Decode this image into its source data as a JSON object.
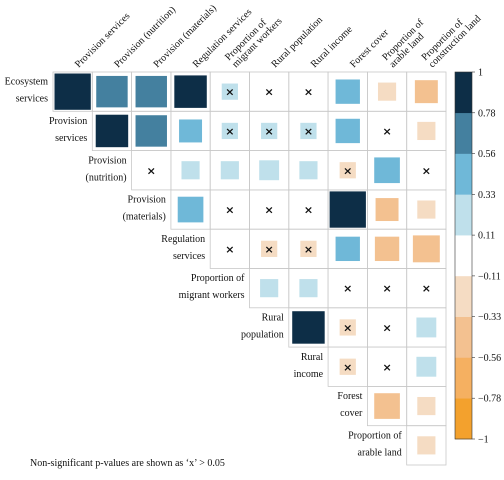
{
  "chart_data": {
    "type": "heatmap",
    "subtype": "correlation-matrix-upper-triangle",
    "columns": [
      "Provision services",
      "Provision (nutrition)",
      "Provision (materials)",
      "Regulation services",
      "Proportion of migrant workers",
      "Rural population",
      "Rural income",
      "Forest cover",
      "Proportion of arable land",
      "Proportion of construction land"
    ],
    "column_label_lines": [
      [
        "Provision services"
      ],
      [
        "Provision (nutrition)"
      ],
      [
        "Provision (materials)"
      ],
      [
        "Regulation services"
      ],
      [
        "Proportion of",
        "migrant workers"
      ],
      [
        "Rural population"
      ],
      [
        "Rural income"
      ],
      [
        "Forest cover"
      ],
      [
        "Proportion of",
        "arable land"
      ],
      [
        "Proportion of",
        "construction land"
      ]
    ],
    "rows": [
      "Ecosystem services",
      "Provision services",
      "Provision (nutrition)",
      "Provision (materials)",
      "Regulation services",
      "Proportion of migrant workers",
      "Rural population",
      "Rural income",
      "Forest cover",
      "Proportion of arable land"
    ],
    "row_label_lines": [
      [
        "Ecosystem",
        "services"
      ],
      [
        "Provision",
        "services"
      ],
      [
        "Provision",
        "(nutrition)"
      ],
      [
        "Provision",
        "(materials)"
      ],
      [
        "Regulation",
        "services"
      ],
      [
        "Proportion of",
        "migrant workers"
      ],
      [
        "Rural",
        "population"
      ],
      [
        "Rural",
        "income"
      ],
      [
        "Forest",
        "cover"
      ],
      [
        "Proportion of",
        "arable land"
      ]
    ],
    "values": [
      [
        1.0,
        0.75,
        0.75,
        0.8,
        0.2,
        0.05,
        0.05,
        0.45,
        -0.25,
        -0.4
      ],
      [
        null,
        0.8,
        0.75,
        0.4,
        0.2,
        0.2,
        0.2,
        0.45,
        0.05,
        -0.25
      ],
      [
        null,
        null,
        0.05,
        0.25,
        0.25,
        0.3,
        0.25,
        -0.2,
        0.5,
        0.05
      ],
      [
        null,
        null,
        null,
        0.5,
        0.05,
        0.05,
        0.05,
        1.0,
        -0.4,
        -0.25
      ],
      [
        null,
        null,
        null,
        null,
        0.05,
        -0.2,
        -0.2,
        0.45,
        -0.45,
        -0.55
      ],
      [
        null,
        null,
        null,
        null,
        null,
        0.25,
        0.25,
        0.05,
        0.05,
        0.05
      ],
      [
        null,
        null,
        null,
        null,
        null,
        null,
        0.8,
        -0.2,
        0.05,
        0.3
      ],
      [
        null,
        null,
        null,
        null,
        null,
        null,
        null,
        -0.2,
        0.05,
        0.3
      ],
      [
        null,
        null,
        null,
        null,
        null,
        null,
        null,
        null,
        -0.5,
        -0.25
      ],
      [
        null,
        null,
        null,
        null,
        null,
        null,
        null,
        null,
        null,
        -0.25
      ]
    ],
    "nonsignificant": [
      [
        false,
        false,
        false,
        false,
        true,
        true,
        true,
        false,
        false,
        false
      ],
      [
        false,
        false,
        false,
        false,
        true,
        true,
        true,
        false,
        true,
        false
      ],
      [
        false,
        false,
        true,
        false,
        false,
        false,
        false,
        true,
        false,
        true
      ],
      [
        false,
        false,
        false,
        false,
        true,
        true,
        true,
        false,
        false,
        false
      ],
      [
        false,
        false,
        false,
        false,
        true,
        true,
        true,
        false,
        false,
        false
      ],
      [
        false,
        false,
        false,
        false,
        false,
        false,
        false,
        true,
        true,
        true
      ],
      [
        false,
        false,
        false,
        false,
        false,
        false,
        false,
        true,
        true,
        false
      ],
      [
        false,
        false,
        false,
        false,
        false,
        false,
        false,
        true,
        true,
        false
      ],
      [
        false,
        false,
        false,
        false,
        false,
        false,
        false,
        false,
        false,
        false
      ],
      [
        false,
        false,
        false,
        false,
        false,
        false,
        false,
        false,
        false,
        false
      ]
    ],
    "colorbar": {
      "ticks": [
        "1",
        "0.78",
        "0.56",
        "0.33",
        "0.11",
        "−0.11",
        "−0.33",
        "−0.56",
        "−0.78",
        "−1"
      ],
      "range": [
        -1,
        1
      ],
      "colors": [
        "#f3a12d",
        "#f5b061",
        "#f3c190",
        "#f5dcc3",
        "#ffffff",
        "#bfe0eb",
        "#6fb8d8",
        "#44809f",
        "#0d2e47"
      ]
    },
    "marker_symbol": "×",
    "note": "Non-significant p-values are shown as ‘x’ > 0.05"
  }
}
